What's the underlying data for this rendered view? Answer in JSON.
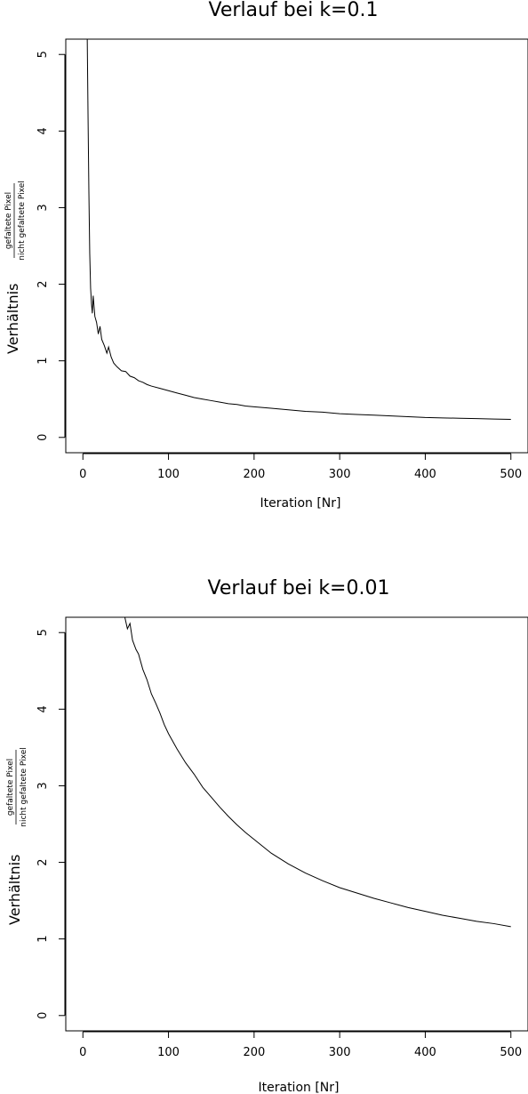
{
  "chart_data": [
    {
      "type": "line",
      "title": "Verlauf bei k=0.1",
      "xlabel": "Iteration [Nr]",
      "ylabel": "Verhältnis",
      "ylabel_fraction": {
        "numerator": "gefaltete Pixel",
        "denominator": "nicht gefaltete Pixel"
      },
      "xlim": [
        -20,
        520
      ],
      "ylim": [
        -0.2,
        5.2
      ],
      "xticks": [
        0,
        100,
        200,
        300,
        400,
        500
      ],
      "yticks": [
        0,
        1,
        2,
        3,
        4,
        5
      ],
      "series": [
        {
          "x": [
            5,
            6,
            7,
            8,
            9,
            10,
            11,
            12,
            14,
            16,
            18,
            20,
            22,
            25,
            28,
            30,
            33,
            36,
            40,
            45,
            50,
            55,
            60,
            65,
            70,
            75,
            80,
            90,
            100,
            110,
            120,
            130,
            140,
            150,
            160,
            170,
            180,
            190,
            200,
            220,
            240,
            260,
            280,
            300,
            320,
            340,
            360,
            380,
            400,
            420,
            440,
            460,
            480,
            500
          ],
          "y": [
            5.3,
            4.2,
            3.2,
            2.4,
            1.95,
            1.75,
            1.62,
            1.85,
            1.58,
            1.5,
            1.35,
            1.45,
            1.28,
            1.2,
            1.1,
            1.18,
            1.05,
            0.97,
            0.92,
            0.87,
            0.86,
            0.8,
            0.78,
            0.74,
            0.72,
            0.69,
            0.67,
            0.64,
            0.61,
            0.58,
            0.55,
            0.52,
            0.5,
            0.48,
            0.46,
            0.44,
            0.43,
            0.41,
            0.4,
            0.38,
            0.36,
            0.34,
            0.33,
            0.31,
            0.3,
            0.29,
            0.28,
            0.27,
            0.26,
            0.255,
            0.25,
            0.245,
            0.24,
            0.235
          ]
        }
      ]
    },
    {
      "type": "line",
      "title": "Verlauf bei k=0.01",
      "xlabel": "Iteration [Nr]",
      "ylabel": "Verhältnis",
      "ylabel_fraction": {
        "numerator": "gefaltete Pixel",
        "denominator": "nicht gefaltete Pixel"
      },
      "xlim": [
        -20,
        520
      ],
      "ylim": [
        -0.2,
        5.2
      ],
      "xticks": [
        0,
        100,
        200,
        300,
        400,
        500
      ],
      "yticks": [
        0,
        1,
        2,
        3,
        4,
        5
      ],
      "series": [
        {
          "x": [
            48,
            52,
            55,
            58,
            62,
            65,
            70,
            75,
            80,
            85,
            90,
            95,
            100,
            110,
            120,
            130,
            140,
            150,
            160,
            170,
            180,
            190,
            200,
            220,
            240,
            260,
            280,
            300,
            320,
            340,
            360,
            380,
            400,
            420,
            440,
            460,
            480,
            500
          ],
          "y": [
            5.25,
            5.05,
            5.12,
            4.9,
            4.78,
            4.72,
            4.52,
            4.38,
            4.2,
            4.08,
            3.95,
            3.8,
            3.68,
            3.48,
            3.3,
            3.15,
            2.98,
            2.85,
            2.72,
            2.6,
            2.49,
            2.39,
            2.3,
            2.12,
            1.98,
            1.86,
            1.76,
            1.67,
            1.6,
            1.53,
            1.47,
            1.41,
            1.36,
            1.31,
            1.27,
            1.23,
            1.2,
            1.16
          ]
        }
      ]
    }
  ]
}
